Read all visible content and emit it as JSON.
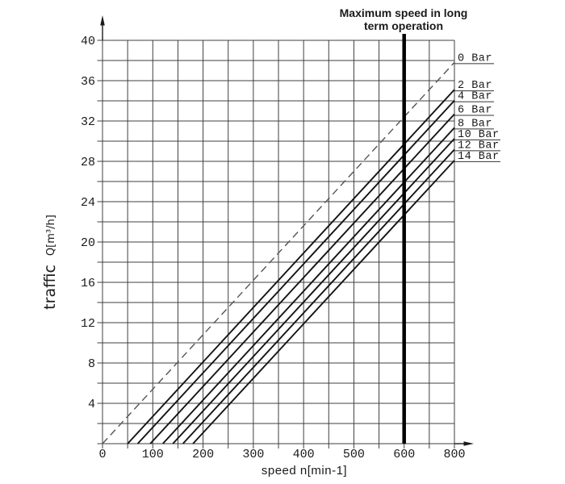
{
  "page": {
    "background": "#ffffff"
  },
  "annotation": {
    "line1": "Maximum speed in long",
    "line2": "term operation"
  },
  "x_axis": {
    "label": "speed n[min-1]",
    "ticks": [
      "0",
      "100",
      "200",
      "300",
      "400",
      "500",
      "600",
      "800"
    ]
  },
  "y_axis": {
    "label_word": "traffic",
    "label_unit": "Q[m³/h]",
    "ticks": [
      "40",
      "36",
      "32",
      "28",
      "24",
      "20",
      "16",
      "12",
      "8",
      "4"
    ]
  },
  "pressure_labels": [
    "0 Bar",
    "2 Bar",
    "4 Bar",
    "6 Bar",
    "8 Bar",
    "10 Bar",
    "12 Bar",
    "14 Bar"
  ],
  "colors": {
    "solid_line": "#141414",
    "dashed_line": "#555555",
    "grid": "#3f3f3f",
    "text": "#1a1a1a",
    "max_speed_line": "#000000"
  },
  "chart_data": {
    "type": "line",
    "title": "Maximum speed in long term operation",
    "xlabel": "speed n[min-1]",
    "ylabel": "traffic Q[m³/h]",
    "xlim": [
      0,
      800
    ],
    "ylim": [
      0,
      40
    ],
    "x_tick_labels": [
      "0",
      "100",
      "200",
      "300",
      "400",
      "500",
      "600",
      "800"
    ],
    "y_tick_labels": [
      40,
      36,
      32,
      28,
      24,
      20,
      16,
      12,
      8,
      4
    ],
    "x_grid_step": 50,
    "y_grid_step": 2,
    "grid": true,
    "legend_position": "right-edge-underlined-labels",
    "q_slope_per_rpm": 0.054,
    "max_speed_line": {
      "label": "Maximum speed in long term operation",
      "n": 600
    },
    "series": [
      {
        "name": "0 Bar",
        "pressure_bar": 0,
        "style": "dashed",
        "n_intercept": 0,
        "q_at_right_edge": 37.8
      },
      {
        "name": "2 Bar",
        "pressure_bar": 2,
        "style": "solid",
        "n_intercept": 50,
        "q_at_right_edge": 35.1
      },
      {
        "name": "4 Bar",
        "pressure_bar": 4,
        "style": "solid",
        "n_intercept": 70,
        "q_at_right_edge": 34.0
      },
      {
        "name": "6 Bar",
        "pressure_bar": 6,
        "style": "solid",
        "n_intercept": 95,
        "q_at_right_edge": 32.7
      },
      {
        "name": "8 Bar",
        "pressure_bar": 8,
        "style": "solid",
        "n_intercept": 120,
        "q_at_right_edge": 31.3
      },
      {
        "name": "10 Bar",
        "pressure_bar": 10,
        "style": "solid",
        "n_intercept": 140,
        "q_at_right_edge": 30.2
      },
      {
        "name": "12 Bar",
        "pressure_bar": 12,
        "style": "solid",
        "n_intercept": 160,
        "q_at_right_edge": 29.2
      },
      {
        "name": "14 Bar",
        "pressure_bar": 14,
        "style": "solid",
        "n_intercept": 180,
        "q_at_right_edge": 28.1
      }
    ]
  }
}
